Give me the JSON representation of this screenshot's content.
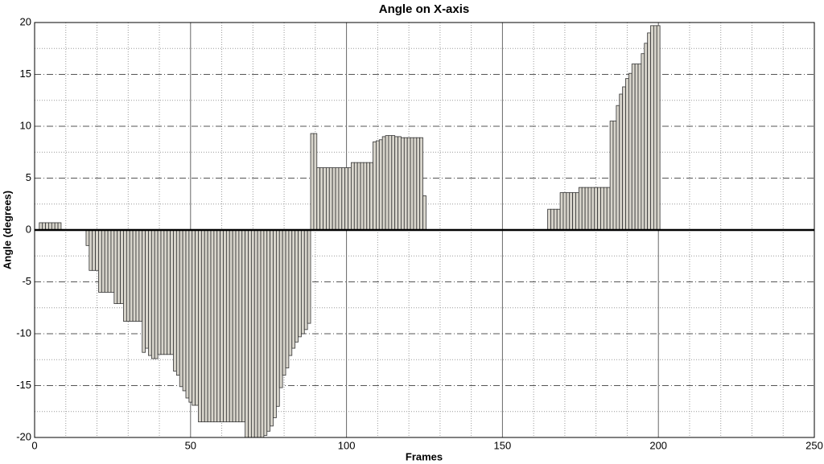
{
  "chart_data": {
    "type": "bar",
    "title": "Angle on X-axis",
    "xlabel": "Frames",
    "ylabel": "Angle (degrees)",
    "color": "#d8d5cc",
    "x": [
      2,
      3,
      4,
      5,
      6,
      7,
      8,
      17,
      18,
      19,
      20,
      21,
      22,
      23,
      24,
      25,
      26,
      27,
      28,
      29,
      30,
      31,
      32,
      33,
      34,
      35,
      36,
      37,
      38,
      39,
      40,
      41,
      42,
      43,
      44,
      45,
      46,
      47,
      48,
      49,
      50,
      51,
      52,
      53,
      54,
      55,
      56,
      57,
      58,
      59,
      60,
      61,
      62,
      63,
      64,
      65,
      66,
      67,
      68,
      69,
      70,
      71,
      72,
      73,
      74,
      75,
      76,
      77,
      78,
      79,
      80,
      81,
      82,
      83,
      84,
      85,
      86,
      87,
      88,
      89,
      90,
      91,
      92,
      93,
      94,
      95,
      96,
      97,
      98,
      99,
      100,
      101,
      102,
      103,
      104,
      105,
      106,
      107,
      108,
      109,
      110,
      111,
      112,
      113,
      114,
      115,
      116,
      117,
      118,
      119,
      120,
      121,
      122,
      123,
      124,
      125,
      165,
      166,
      167,
      168,
      169,
      170,
      171,
      172,
      173,
      174,
      175,
      176,
      177,
      178,
      179,
      180,
      181,
      182,
      183,
      184,
      185,
      186,
      187,
      188,
      189,
      190,
      191,
      192,
      193,
      194,
      195,
      196,
      197,
      198,
      199,
      200
    ],
    "values": [
      0.7,
      0.7,
      0.7,
      0.7,
      0.7,
      0.7,
      0.7,
      -1.5,
      -3.9,
      -3.9,
      -3.9,
      -6,
      -6,
      -6,
      -6,
      -6,
      -7.1,
      -7.1,
      -7.1,
      -8.8,
      -8.8,
      -8.8,
      -8.8,
      -8.8,
      -8.8,
      -11.8,
      -11.4,
      -12.1,
      -12.4,
      -12.4,
      -12,
      -12,
      -12,
      -12,
      -12,
      -13.6,
      -14,
      -15.1,
      -15.5,
      -16.2,
      -16.6,
      -16.9,
      -16.9,
      -18.5,
      -18.5,
      -18.5,
      -18.5,
      -18.5,
      -18.5,
      -18.5,
      -18.5,
      -18.5,
      -18.5,
      -18.5,
      -18.5,
      -18.5,
      -18.5,
      -18.5,
      -20,
      -20,
      -20,
      -20,
      -20,
      -20,
      -19.8,
      -19.4,
      -18.9,
      -18.1,
      -17,
      -15.2,
      -14,
      -13.3,
      -12.1,
      -11.4,
      -10.8,
      -10.3,
      -10,
      -9.6,
      -9,
      9.3,
      9.3,
      6,
      6,
      6,
      6,
      6,
      6,
      6,
      6,
      6,
      6,
      6,
      6.5,
      6.5,
      6.5,
      6.5,
      6.5,
      6.5,
      6.5,
      8.5,
      8.6,
      8.7,
      9,
      9.1,
      9.1,
      9.1,
      9,
      9,
      8.9,
      8.9,
      8.9,
      8.9,
      8.9,
      8.9,
      8.9,
      3.3,
      2,
      2,
      2,
      2,
      3.6,
      3.6,
      3.6,
      3.6,
      3.6,
      3.6,
      4.1,
      4.1,
      4.1,
      4.1,
      4.1,
      4.1,
      4.1,
      4.1,
      4.1,
      4.1,
      10.5,
      10.5,
      12,
      13.1,
      13.8,
      14.6,
      15.1,
      16,
      16,
      16,
      17,
      18,
      19,
      19.7,
      19.7,
      19.7
    ],
    "xlim": [
      0,
      250
    ],
    "xticks": [
      0,
      50,
      100,
      150,
      200,
      250
    ],
    "ylim": [
      -20,
      20
    ],
    "yticks": [
      -20,
      -15,
      -10,
      -5,
      0,
      5,
      10,
      15,
      20
    ],
    "grid": true
  }
}
